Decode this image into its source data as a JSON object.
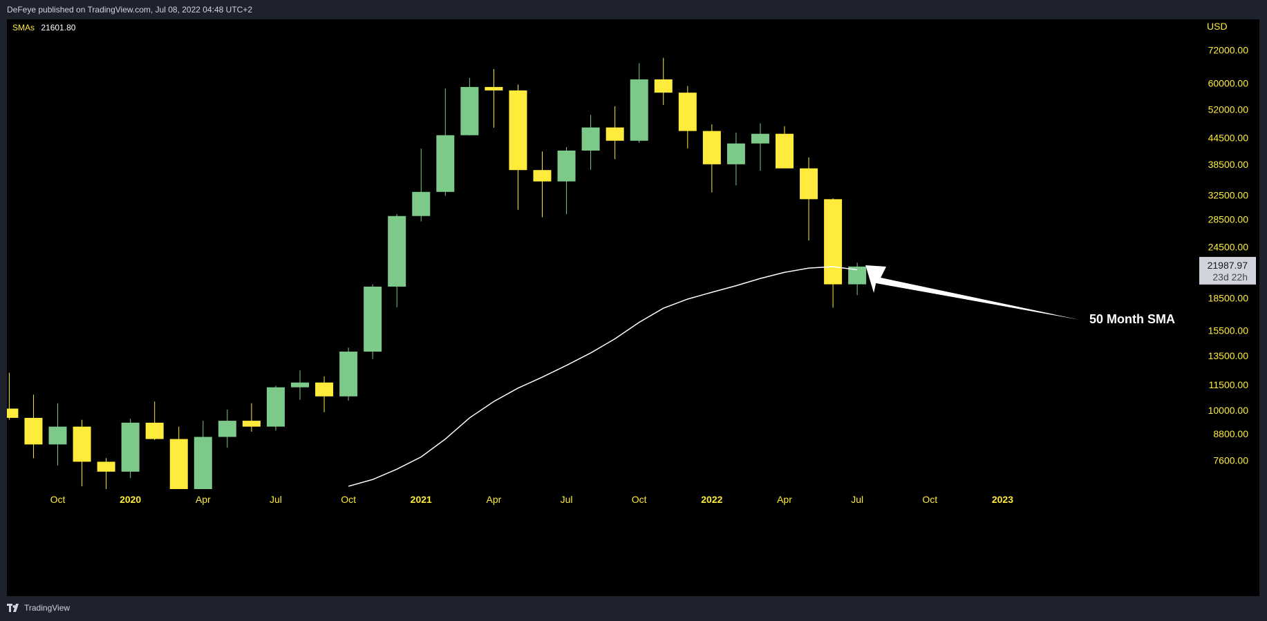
{
  "header": {
    "publish_text": "DeFeye published on TradingView.com, Jul 08, 2022 04:48 UTC+2"
  },
  "legend": {
    "label": "SMAs",
    "value": "21601.80"
  },
  "footer": {
    "brand": "TradingView"
  },
  "colors": {
    "background": "#000000",
    "frame": "#1e222d",
    "up": "#7dc98a",
    "down": "#ffeb3b",
    "sma": "#ffffff",
    "axis_text": "#ffeb3b",
    "price_tag_bg": "#d1d4dc",
    "price_tag_text": "#131722"
  },
  "chart_data": {
    "type": "candlestick",
    "currency_label": "USD",
    "y_scale": "log",
    "ylim": [
      6500,
      82000
    ],
    "y_ticks": [
      "72000.00",
      "60000.00",
      "52000.00",
      "44500.00",
      "38500.00",
      "32500.00",
      "28500.00",
      "24500.00",
      "18500.00",
      "15500.00",
      "13500.00",
      "11500.00",
      "10000.00",
      "8800.00",
      "7600.00"
    ],
    "y_tick_values": [
      72000,
      60000,
      52000,
      44500,
      38500,
      32500,
      28500,
      24500,
      18500,
      15500,
      13500,
      11500,
      10000,
      8800,
      7600
    ],
    "x_ticks": [
      {
        "label": "Oct",
        "month": "2019-10",
        "bold": false
      },
      {
        "label": "2020",
        "month": "2020-01",
        "bold": true
      },
      {
        "label": "Apr",
        "month": "2020-04",
        "bold": false
      },
      {
        "label": "Jul",
        "month": "2020-07",
        "bold": false
      },
      {
        "label": "Oct",
        "month": "2020-10",
        "bold": false
      },
      {
        "label": "2021",
        "month": "2021-01",
        "bold": true
      },
      {
        "label": "Apr",
        "month": "2021-04",
        "bold": false
      },
      {
        "label": "Jul",
        "month": "2021-07",
        "bold": false
      },
      {
        "label": "Oct",
        "month": "2021-10",
        "bold": false
      },
      {
        "label": "2022",
        "month": "2022-01",
        "bold": true
      },
      {
        "label": "Apr",
        "month": "2022-04",
        "bold": false
      },
      {
        "label": "Jul",
        "month": "2022-07",
        "bold": false
      },
      {
        "label": "Oct",
        "month": "2022-10",
        "bold": false
      },
      {
        "label": "2023",
        "month": "2023-01",
        "bold": true
      }
    ],
    "candles": [
      {
        "month": "2019-08",
        "open": 10100,
        "high": 12300,
        "low": 9500,
        "close": 9600
      },
      {
        "month": "2019-09",
        "open": 9600,
        "high": 10900,
        "low": 7700,
        "close": 8300
      },
      {
        "month": "2019-10",
        "open": 8300,
        "high": 10400,
        "low": 7400,
        "close": 9150
      },
      {
        "month": "2019-11",
        "open": 9150,
        "high": 9500,
        "low": 6600,
        "close": 7550
      },
      {
        "month": "2019-12",
        "open": 7550,
        "high": 7700,
        "low": 6450,
        "close": 7150
      },
      {
        "month": "2020-01",
        "open": 7150,
        "high": 9550,
        "low": 6900,
        "close": 9350
      },
      {
        "month": "2020-02",
        "open": 9350,
        "high": 10500,
        "low": 8500,
        "close": 8550
      },
      {
        "month": "2020-03",
        "open": 8550,
        "high": 9150,
        "low": 3850,
        "close": 6450
      },
      {
        "month": "2020-04",
        "open": 6450,
        "high": 9450,
        "low": 6150,
        "close": 8650
      },
      {
        "month": "2020-05",
        "open": 8650,
        "high": 10050,
        "low": 8150,
        "close": 9450
      },
      {
        "month": "2020-06",
        "open": 9450,
        "high": 10400,
        "low": 8900,
        "close": 9150
      },
      {
        "month": "2020-07",
        "open": 9150,
        "high": 11450,
        "low": 8950,
        "close": 11350
      },
      {
        "month": "2020-08",
        "open": 11350,
        "high": 12450,
        "low": 10600,
        "close": 11650
      },
      {
        "month": "2020-09",
        "open": 11650,
        "high": 12050,
        "low": 9900,
        "close": 10800
      },
      {
        "month": "2020-10",
        "open": 10800,
        "high": 14100,
        "low": 10550,
        "close": 13800
      },
      {
        "month": "2020-11",
        "open": 13800,
        "high": 19950,
        "low": 13250,
        "close": 19700
      },
      {
        "month": "2020-12",
        "open": 19700,
        "high": 29300,
        "low": 17600,
        "close": 29000
      },
      {
        "month": "2021-01",
        "open": 29000,
        "high": 41950,
        "low": 28150,
        "close": 33100
      },
      {
        "month": "2021-02",
        "open": 33100,
        "high": 58350,
        "low": 32400,
        "close": 45150
      },
      {
        "month": "2021-03",
        "open": 45150,
        "high": 61800,
        "low": 45100,
        "close": 58800
      },
      {
        "month": "2021-04",
        "open": 58800,
        "high": 64850,
        "low": 47050,
        "close": 57700
      },
      {
        "month": "2021-05",
        "open": 57700,
        "high": 59600,
        "low": 30000,
        "close": 37300
      },
      {
        "month": "2021-06",
        "open": 37300,
        "high": 41300,
        "low": 28800,
        "close": 35050
      },
      {
        "month": "2021-07",
        "open": 35050,
        "high": 42300,
        "low": 29300,
        "close": 41500
      },
      {
        "month": "2021-08",
        "open": 41500,
        "high": 50500,
        "low": 37350,
        "close": 47100
      },
      {
        "month": "2021-09",
        "open": 47100,
        "high": 52900,
        "low": 39600,
        "close": 43800
      },
      {
        "month": "2021-10",
        "open": 43800,
        "high": 67000,
        "low": 43300,
        "close": 61300
      },
      {
        "month": "2021-11",
        "open": 61300,
        "high": 69000,
        "low": 53250,
        "close": 57000
      },
      {
        "month": "2021-12",
        "open": 57000,
        "high": 59100,
        "low": 42000,
        "close": 46200
      },
      {
        "month": "2022-01",
        "open": 46200,
        "high": 47900,
        "low": 33000,
        "close": 38500
      },
      {
        "month": "2022-02",
        "open": 38500,
        "high": 45800,
        "low": 34300,
        "close": 43150
      },
      {
        "month": "2022-03",
        "open": 43150,
        "high": 48200,
        "low": 37150,
        "close": 45500
      },
      {
        "month": "2022-04",
        "open": 45500,
        "high": 47450,
        "low": 37650,
        "close": 37650
      },
      {
        "month": "2022-05",
        "open": 37650,
        "high": 40000,
        "low": 25350,
        "close": 31800
      },
      {
        "month": "2022-06",
        "open": 31800,
        "high": 31950,
        "low": 17550,
        "close": 19950
      },
      {
        "month": "2022-07",
        "open": 19950,
        "high": 22450,
        "low": 18800,
        "close": 21987.97
      }
    ],
    "sma": {
      "name": "SMAs",
      "period_months": 50,
      "points": [
        {
          "month": "2020-10",
          "value": 6600
        },
        {
          "month": "2020-11",
          "value": 6850
        },
        {
          "month": "2020-12",
          "value": 7250
        },
        {
          "month": "2021-01",
          "value": 7750
        },
        {
          "month": "2021-02",
          "value": 8550
        },
        {
          "month": "2021-03",
          "value": 9600
        },
        {
          "month": "2021-04",
          "value": 10500
        },
        {
          "month": "2021-05",
          "value": 11300
        },
        {
          "month": "2021-06",
          "value": 12000
        },
        {
          "month": "2021-07",
          "value": 12800
        },
        {
          "month": "2021-08",
          "value": 13700
        },
        {
          "month": "2021-09",
          "value": 14800
        },
        {
          "month": "2021-10",
          "value": 16200
        },
        {
          "month": "2021-11",
          "value": 17500
        },
        {
          "month": "2021-12",
          "value": 18400
        },
        {
          "month": "2022-01",
          "value": 19100
        },
        {
          "month": "2022-02",
          "value": 19800
        },
        {
          "month": "2022-03",
          "value": 20600
        },
        {
          "month": "2022-04",
          "value": 21300
        },
        {
          "month": "2022-05",
          "value": 21800
        },
        {
          "month": "2022-06",
          "value": 21980
        },
        {
          "month": "2022-07",
          "value": 21602
        }
      ]
    },
    "price_tag": {
      "price": "21987.97",
      "countdown": "23d 22h"
    },
    "annotation": {
      "text": "50 Month SMA"
    }
  }
}
